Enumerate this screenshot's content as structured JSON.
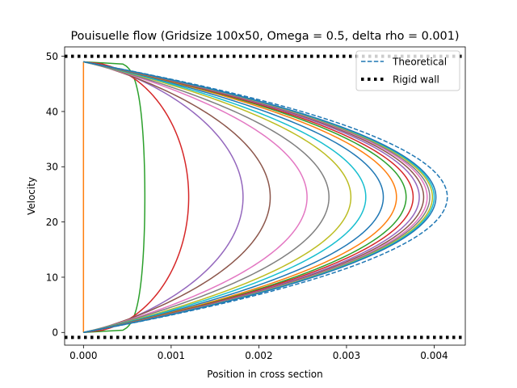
{
  "chart_data": {
    "type": "line",
    "title": "Pouisuelle flow (Gridsize 100x50, Omega = 0.5, delta rho = 0.001)",
    "xlabel": "Position in cross section",
    "ylabel": "Velocity",
    "xlim": [
      -0.000215,
      0.004355
    ],
    "ylim": [
      -2.3,
      51.7
    ],
    "xticks": [
      0.0,
      0.001,
      0.002,
      0.003,
      0.004
    ],
    "xtick_labels": [
      "0.000",
      "0.001",
      "0.002",
      "0.003",
      "0.004"
    ],
    "yticks": [
      0,
      10,
      20,
      30,
      40,
      50
    ],
    "ytick_labels": [
      "0",
      "10",
      "20",
      "30",
      "40",
      "50"
    ],
    "grid": false,
    "legend": {
      "placement": "top-right",
      "entries": [
        {
          "label": "Theoretical",
          "style": "dashed",
          "color": "#1f77b4"
        },
        {
          "label": "Rigid wall",
          "style": "dotted",
          "color": "#000000"
        }
      ]
    },
    "walls": [
      50.0,
      -0.9
    ],
    "theoretical": {
      "peak": 0.00415,
      "y_start": 0,
      "y_end": 49,
      "color": "#1f77b4"
    },
    "series": [
      {
        "peak": 0.0,
        "shape": 1.0,
        "color": "#ff7f0e"
      },
      {
        "peak": 0.0007,
        "shape": 0.13,
        "color": "#2ca02c"
      },
      {
        "peak": 0.0012,
        "shape": 0.5,
        "color": "#d62728"
      },
      {
        "peak": 0.00182,
        "shape": 0.75,
        "color": "#9467bd"
      },
      {
        "peak": 0.00213,
        "shape": 0.85,
        "color": "#8c564b"
      },
      {
        "peak": 0.00255,
        "shape": 0.92,
        "color": "#e377c2"
      },
      {
        "peak": 0.0028,
        "shape": 0.95,
        "color": "#7f7f7f"
      },
      {
        "peak": 0.00305,
        "shape": 0.96,
        "color": "#bcbd22"
      },
      {
        "peak": 0.00322,
        "shape": 0.97,
        "color": "#17becf"
      },
      {
        "peak": 0.00342,
        "shape": 0.98,
        "color": "#1f77b4"
      },
      {
        "peak": 0.00357,
        "shape": 0.98,
        "color": "#ff7f0e"
      },
      {
        "peak": 0.00368,
        "shape": 0.985,
        "color": "#2ca02c"
      },
      {
        "peak": 0.00376,
        "shape": 0.99,
        "color": "#d62728"
      },
      {
        "peak": 0.00383,
        "shape": 0.99,
        "color": "#9467bd"
      },
      {
        "peak": 0.00388,
        "shape": 0.99,
        "color": "#8c564b"
      },
      {
        "peak": 0.00392,
        "shape": 0.99,
        "color": "#e377c2"
      },
      {
        "peak": 0.00395,
        "shape": 0.995,
        "color": "#7f7f7f"
      },
      {
        "peak": 0.00398,
        "shape": 0.995,
        "color": "#bcbd22"
      },
      {
        "peak": 0.004,
        "shape": 0.995,
        "color": "#17becf"
      },
      {
        "peak": 0.00402,
        "shape": 0.995,
        "color": "#1f77b4"
      }
    ]
  }
}
